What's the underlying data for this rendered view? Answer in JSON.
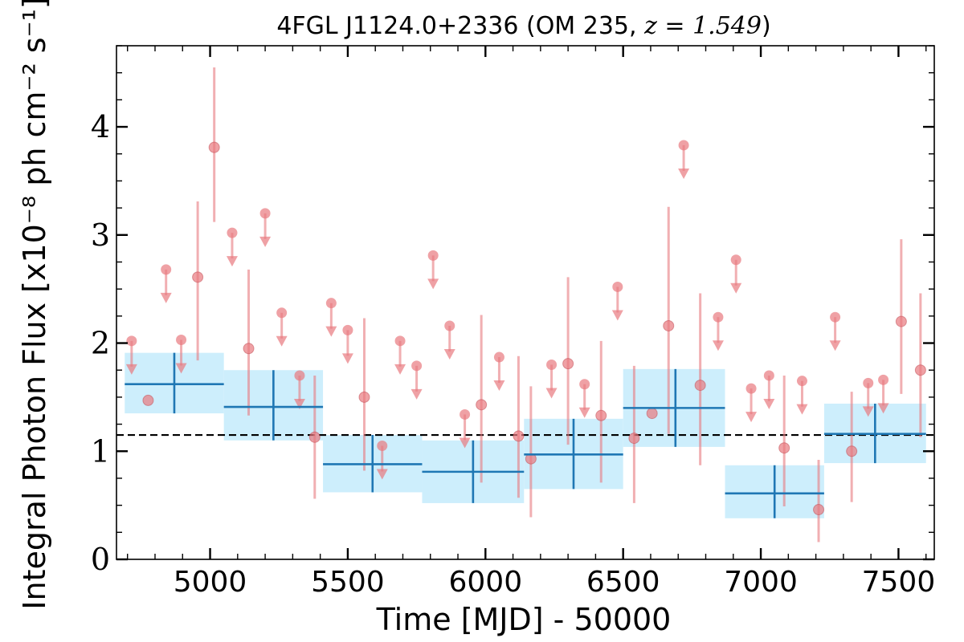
{
  "chart_data": {
    "type": "scatter",
    "title": "4FGL J1124.0+2336 (OM 235, z = 1.549)",
    "title_parts": {
      "name": "4FGL J1124.0+2336 (OM 235, ",
      "math": "z = 1.549",
      "close": ")"
    },
    "xlabel": "Time [MJD] - 50000",
    "ylabel": "Integral Photon Flux [x10⁻⁸ ph cm⁻² s⁻¹]",
    "xlim": [
      4660,
      7630
    ],
    "ylim": [
      0,
      4.75
    ],
    "xticks": [
      5000,
      5500,
      6000,
      6500,
      7000,
      7500
    ],
    "yticks": [
      0,
      1,
      2,
      3,
      4
    ],
    "reference_level": 1.15,
    "colors": {
      "points": "#e8797f",
      "bins": "#1f77b4",
      "bin_band": "#cdeefc"
    },
    "binned": [
      {
        "x0": 4690,
        "x1": 5050,
        "xc": 4870,
        "y": 1.62,
        "ylo": 1.35,
        "yhi": 1.91
      },
      {
        "x0": 5050,
        "x1": 5410,
        "xc": 5230,
        "y": 1.41,
        "ylo": 1.1,
        "yhi": 1.75
      },
      {
        "x0": 5410,
        "x1": 5770,
        "xc": 5590,
        "y": 0.88,
        "ylo": 0.62,
        "yhi": 1.15
      },
      {
        "x0": 5770,
        "x1": 6140,
        "xc": 5955,
        "y": 0.81,
        "ylo": 0.52,
        "yhi": 1.1
      },
      {
        "x0": 6140,
        "x1": 6500,
        "xc": 6320,
        "y": 0.97,
        "ylo": 0.65,
        "yhi": 1.3
      },
      {
        "x0": 6500,
        "x1": 6870,
        "xc": 6690,
        "y": 1.4,
        "ylo": 1.04,
        "yhi": 1.76
      },
      {
        "x0": 6870,
        "x1": 7230,
        "xc": 7050,
        "y": 0.61,
        "ylo": 0.38,
        "yhi": 0.87
      },
      {
        "x0": 7230,
        "x1": 7600,
        "xc": 7415,
        "y": 1.16,
        "ylo": 0.89,
        "yhi": 1.44
      }
    ],
    "detections": [
      {
        "x": 4775,
        "y": 1.47,
        "ylo": 1.47,
        "yhi": 1.47
      },
      {
        "x": 4955,
        "y": 2.61,
        "ylo": 1.84,
        "yhi": 3.31
      },
      {
        "x": 5015,
        "y": 3.81,
        "ylo": 3.12,
        "yhi": 4.55
      },
      {
        "x": 5140,
        "y": 1.95,
        "ylo": 1.33,
        "yhi": 2.68
      },
      {
        "x": 5380,
        "y": 1.13,
        "ylo": 0.56,
        "yhi": 1.7
      },
      {
        "x": 5560,
        "y": 1.5,
        "ylo": 0.82,
        "yhi": 2.23
      },
      {
        "x": 5985,
        "y": 1.43,
        "ylo": 0.71,
        "yhi": 2.26
      },
      {
        "x": 6120,
        "y": 1.14,
        "ylo": 0.57,
        "yhi": 1.88
      },
      {
        "x": 6165,
        "y": 0.93,
        "ylo": 0.39,
        "yhi": 1.6
      },
      {
        "x": 6300,
        "y": 1.81,
        "ylo": 1.06,
        "yhi": 2.61
      },
      {
        "x": 6420,
        "y": 1.33,
        "ylo": 0.71,
        "yhi": 2.02
      },
      {
        "x": 6540,
        "y": 1.12,
        "ylo": 0.52,
        "yhi": 1.79
      },
      {
        "x": 6605,
        "y": 1.35,
        "ylo": 1.35,
        "yhi": 1.35
      },
      {
        "x": 6665,
        "y": 2.16,
        "ylo": 1.16,
        "yhi": 3.26
      },
      {
        "x": 6780,
        "y": 1.61,
        "ylo": 0.87,
        "yhi": 2.46
      },
      {
        "x": 7085,
        "y": 1.03,
        "ylo": 0.49,
        "yhi": 1.7
      },
      {
        "x": 7210,
        "y": 0.46,
        "ylo": 0.16,
        "yhi": 0.92
      },
      {
        "x": 7330,
        "y": 1.0,
        "ylo": 0.53,
        "yhi": 1.55
      },
      {
        "x": 7510,
        "y": 2.2,
        "ylo": 1.53,
        "yhi": 2.96
      },
      {
        "x": 7580,
        "y": 1.75,
        "ylo": 1.13,
        "yhi": 2.46
      }
    ],
    "upper_limits": [
      {
        "x": 4715,
        "y": 2.02
      },
      {
        "x": 4840,
        "y": 2.68
      },
      {
        "x": 4895,
        "y": 2.03
      },
      {
        "x": 5080,
        "y": 3.02
      },
      {
        "x": 5200,
        "y": 3.2
      },
      {
        "x": 5260,
        "y": 2.28
      },
      {
        "x": 5325,
        "y": 1.7
      },
      {
        "x": 5440,
        "y": 2.37
      },
      {
        "x": 5500,
        "y": 2.12
      },
      {
        "x": 5625,
        "y": 1.05
      },
      {
        "x": 5690,
        "y": 2.02
      },
      {
        "x": 5750,
        "y": 1.79
      },
      {
        "x": 5810,
        "y": 2.81
      },
      {
        "x": 5870,
        "y": 2.16
      },
      {
        "x": 5925,
        "y": 1.34
      },
      {
        "x": 6050,
        "y": 1.87
      },
      {
        "x": 6240,
        "y": 1.8
      },
      {
        "x": 6360,
        "y": 1.62
      },
      {
        "x": 6480,
        "y": 2.52
      },
      {
        "x": 6720,
        "y": 3.83
      },
      {
        "x": 6845,
        "y": 2.24
      },
      {
        "x": 6910,
        "y": 2.77
      },
      {
        "x": 6965,
        "y": 1.58
      },
      {
        "x": 7030,
        "y": 1.7
      },
      {
        "x": 7150,
        "y": 1.65
      },
      {
        "x": 7270,
        "y": 2.24
      },
      {
        "x": 7390,
        "y": 1.63
      },
      {
        "x": 7445,
        "y": 1.66
      }
    ]
  }
}
